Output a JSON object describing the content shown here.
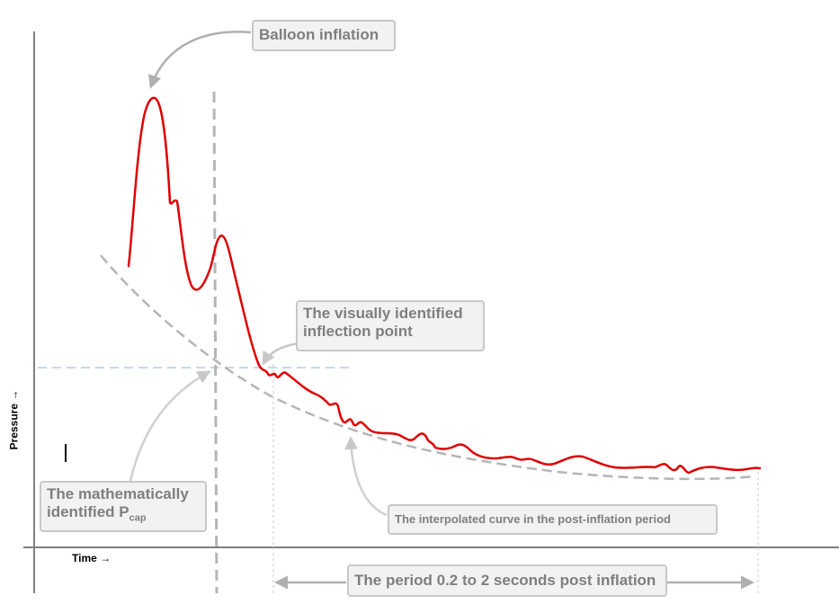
{
  "axes": {
    "x_label": "Time",
    "y_label": "Pressure",
    "arrow": "→"
  },
  "callouts": {
    "balloon": "Balloon inflation",
    "inflection_line1": "The visually identified",
    "inflection_line2": "inflection point",
    "pcap_line1": "The mathematically",
    "pcap_line2_main": "identified P",
    "pcap_line2_sub": "cap",
    "interpolated": "The interpolated curve in the post-inflation period",
    "period": "The period 0.2 to 2 seconds post inflation"
  },
  "colors": {
    "pressure_curve": "#e00000",
    "dashed_curve": "#b5b5b5",
    "horizontal_guide": "#c5d9ea",
    "axis": "#808080",
    "callout_text": "#7f7f7f"
  }
}
